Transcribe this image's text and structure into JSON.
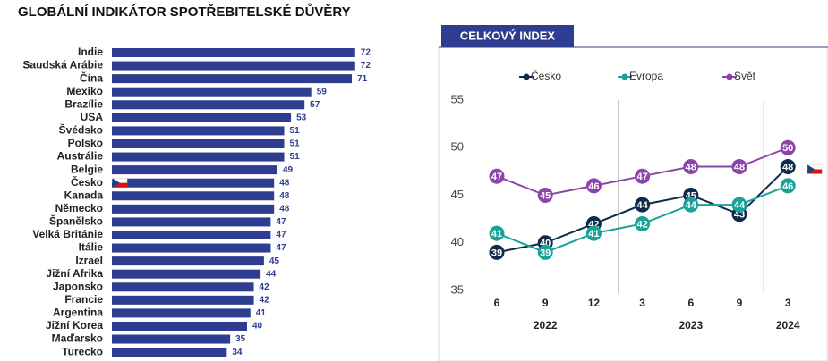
{
  "chart_data": [
    {
      "type": "bar",
      "horizontal": true,
      "title": "GLOBÁLNÍ INDIKÁTOR SPOTŘEBITELSKÉ DŮVĚRY",
      "categories": [
        "Indie",
        "Saudská Arábie",
        "Čína",
        "Mexiko",
        "Brazílie",
        "USA",
        "Švédsko",
        "Polsko",
        "Austrálie",
        "Belgie",
        "Česko",
        "Kanada",
        "Německo",
        "Španělsko",
        "Velká Británie",
        "Itálie",
        "Izrael",
        "Jižní Afrika",
        "Japonsko",
        "Francie",
        "Argentina",
        "Jižní Korea",
        "Maďarsko",
        "Turecko"
      ],
      "values": [
        72,
        72,
        71,
        59,
        57,
        53,
        51,
        51,
        51,
        49,
        48,
        48,
        48,
        47,
        47,
        47,
        45,
        44,
        42,
        42,
        41,
        40,
        35,
        34
      ],
      "color": "#2e3d8f",
      "xlim": [
        0,
        80
      ]
    },
    {
      "type": "line",
      "title": "CELKOVÝ INDEX",
      "categories": [
        "6",
        "9",
        "12",
        "3",
        "6",
        "9",
        "3"
      ],
      "groups": [
        {
          "label": "2022",
          "span": 3
        },
        {
          "label": "2023",
          "span": 3
        },
        {
          "label": "2024",
          "span": 1
        }
      ],
      "series": [
        {
          "name": "Česko",
          "color": "#0e2b4c",
          "values": [
            39,
            40,
            42,
            44,
            45,
            43,
            48
          ]
        },
        {
          "name": "Evropa",
          "color": "#17a398",
          "values": [
            41,
            39,
            41,
            42,
            44,
            44,
            46
          ]
        },
        {
          "name": "Svět",
          "color": "#8b45a8",
          "values": [
            47,
            45,
            46,
            47,
            48,
            48,
            50
          ]
        }
      ],
      "ylim": [
        35,
        55
      ],
      "yticks": [
        35,
        40,
        45,
        50,
        55
      ],
      "legend": "top"
    }
  ]
}
